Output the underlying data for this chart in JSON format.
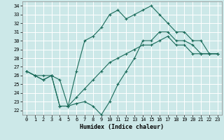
{
  "title": "",
  "xlabel": "Humidex (Indice chaleur)",
  "xlim": [
    -0.5,
    23.5
  ],
  "ylim": [
    21.5,
    34.5
  ],
  "yticks": [
    22,
    23,
    24,
    25,
    26,
    27,
    28,
    29,
    30,
    31,
    32,
    33,
    34
  ],
  "xticks": [
    0,
    1,
    2,
    3,
    4,
    5,
    6,
    7,
    8,
    9,
    10,
    11,
    12,
    13,
    14,
    15,
    16,
    17,
    18,
    19,
    20,
    21,
    22,
    23
  ],
  "bg_color": "#cce8e8",
  "grid_color": "#ffffff",
  "line_color": "#1a6b5a",
  "line1_x": [
    0,
    1,
    2,
    3,
    4,
    5,
    6,
    7,
    8,
    9,
    10,
    11,
    12,
    13,
    14,
    15,
    16,
    17,
    18,
    19,
    20,
    21,
    22,
    23
  ],
  "line1_y": [
    26.5,
    26.0,
    26.0,
    26.0,
    25.5,
    22.5,
    22.8,
    23.0,
    22.5,
    21.5,
    23.0,
    25.0,
    26.5,
    28.0,
    30.0,
    30.0,
    31.0,
    31.0,
    30.0,
    30.0,
    29.5,
    28.5,
    28.5,
    28.5
  ],
  "line2_x": [
    0,
    1,
    2,
    3,
    4,
    5,
    6,
    7,
    8,
    9,
    10,
    11,
    12,
    13,
    14,
    15,
    16,
    17,
    18,
    19,
    20,
    21,
    22,
    23
  ],
  "line2_y": [
    26.5,
    26.0,
    25.5,
    26.0,
    22.5,
    22.5,
    26.5,
    30.0,
    30.5,
    31.5,
    33.0,
    33.5,
    32.5,
    33.0,
    33.5,
    34.0,
    33.0,
    32.0,
    31.0,
    31.0,
    30.0,
    30.0,
    28.5,
    28.5
  ],
  "line3_x": [
    0,
    1,
    2,
    3,
    4,
    5,
    6,
    7,
    8,
    9,
    10,
    11,
    12,
    13,
    14,
    15,
    16,
    17,
    18,
    19,
    20,
    21,
    22,
    23
  ],
  "line3_y": [
    26.5,
    26.0,
    25.5,
    26.0,
    22.5,
    22.5,
    23.5,
    24.5,
    25.5,
    26.5,
    27.5,
    28.0,
    28.5,
    29.0,
    29.5,
    29.5,
    30.0,
    30.5,
    29.5,
    29.5,
    28.5,
    28.5,
    28.5,
    28.5
  ],
  "tick_fontsize": 5.0,
  "xlabel_fontsize": 6.0
}
